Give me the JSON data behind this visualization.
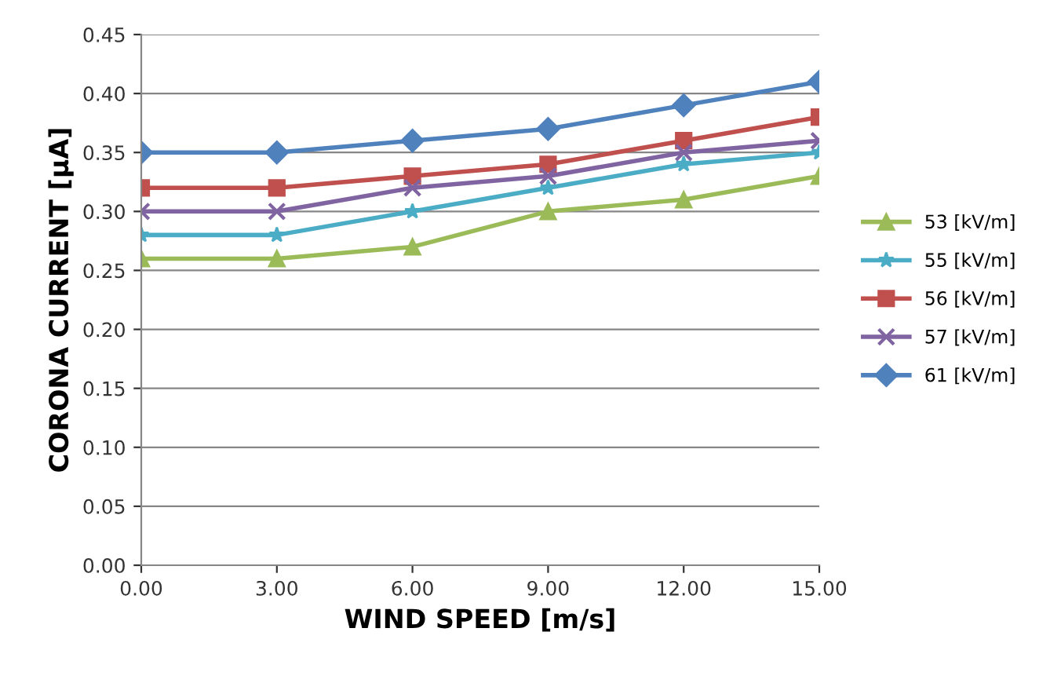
{
  "chart_data": {
    "type": "line",
    "xlabel": "WIND SPEED [m/s]",
    "ylabel": "CORONA CURRENT [µA]",
    "x": [
      0,
      3,
      6,
      9,
      12,
      15
    ],
    "xlim": [
      0,
      15
    ],
    "xticks": [
      {
        "value": 0,
        "label": "0.00"
      },
      {
        "value": 3,
        "label": "3.00"
      },
      {
        "value": 6,
        "label": "6.00"
      },
      {
        "value": 9,
        "label": "9.00"
      },
      {
        "value": 12,
        "label": "12.00"
      },
      {
        "value": 15,
        "label": "15.00"
      }
    ],
    "ylim": [
      0,
      0.45
    ],
    "yticks": [
      {
        "value": 0,
        "label": "0.00"
      },
      {
        "value": 0.05,
        "label": "0.05"
      },
      {
        "value": 0.1,
        "label": "0.10"
      },
      {
        "value": 0.15,
        "label": "0.15"
      },
      {
        "value": 0.2,
        "label": "0.20"
      },
      {
        "value": 0.25,
        "label": "0.25"
      },
      {
        "value": 0.3,
        "label": "0.30"
      },
      {
        "value": 0.35,
        "label": "0.35"
      },
      {
        "value": 0.4,
        "label": "0.40"
      },
      {
        "value": 0.45,
        "label": "0.45"
      }
    ],
    "grid": "y",
    "legend": "right",
    "line_style": "solid",
    "series": [
      {
        "name": "53 [kV/m]",
        "color": "#9bbb59",
        "marker": "triangle",
        "values": [
          0.26,
          0.26,
          0.27,
          0.3,
          0.31,
          0.33
        ]
      },
      {
        "name": "55 [kV/m]",
        "color": "#4bacc6",
        "marker": "star",
        "values": [
          0.28,
          0.28,
          0.3,
          0.32,
          0.34,
          0.35
        ]
      },
      {
        "name": "56 [kV/m]",
        "color": "#c0504d",
        "marker": "square",
        "values": [
          0.32,
          0.32,
          0.33,
          0.34,
          0.36,
          0.38
        ]
      },
      {
        "name": "57 [kV/m]",
        "color": "#8064a2",
        "marker": "cross",
        "values": [
          0.3,
          0.3,
          0.32,
          0.33,
          0.35,
          0.36
        ]
      },
      {
        "name": "61 [kV/m]",
        "color": "#4f81bd",
        "marker": "diamond",
        "values": [
          0.35,
          0.35,
          0.36,
          0.37,
          0.39,
          0.41
        ]
      }
    ]
  }
}
